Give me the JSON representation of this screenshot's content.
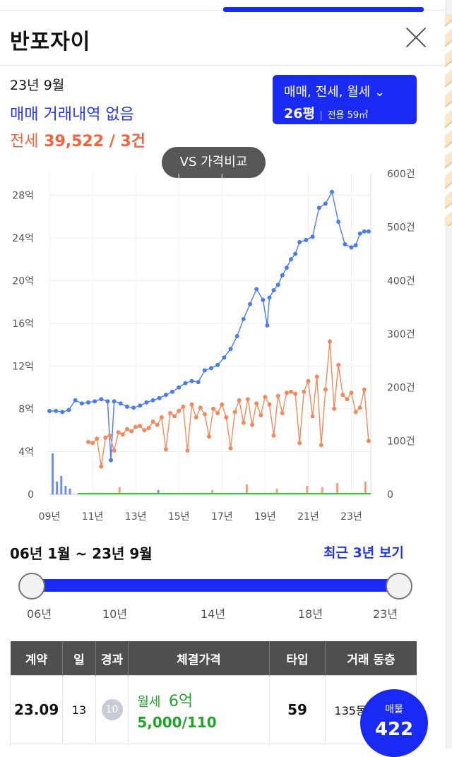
{
  "header": {
    "title": "반포자이"
  },
  "summary": {
    "date": "23년 9월",
    "sale_none": "매매 거래내역 없음",
    "jeonse_label": "전세",
    "jeonse_value": "39,522 / 3건"
  },
  "filter": {
    "types": "매매, 전세, 월세",
    "pyeong": "26평",
    "area": "전용 59㎡"
  },
  "compare_button": "VS 가격비교",
  "chart_data": {
    "type": "line",
    "left_axis_ticks": [
      "0",
      "4억",
      "8억",
      "12억",
      "16억",
      "20억",
      "24억",
      "28억"
    ],
    "right_axis_ticks": [
      "0",
      "100건",
      "200건",
      "300건",
      "400건",
      "500건",
      "600건"
    ],
    "x_ticks": [
      "09년",
      "11년",
      "13년",
      "15년",
      "17년",
      "19년",
      "21년",
      "23년"
    ],
    "ylim_left": [
      0,
      30
    ],
    "ylim_right": [
      0,
      600
    ],
    "xlim": [
      2009.0,
      2023.9
    ],
    "grid": true,
    "series": [
      {
        "color": "#4a7bf0",
        "x": [
          2009.0,
          2009.3,
          2009.6,
          2009.9,
          2010.2,
          2010.5,
          2010.8,
          2011.1,
          2011.4,
          2011.7,
          2011.85,
          2012.0,
          2012.3,
          2012.6,
          2012.9,
          2013.2,
          2013.5,
          2013.8,
          2014.1,
          2014.4,
          2014.7,
          2015.0,
          2015.3,
          2015.6,
          2015.9,
          2016.2,
          2016.5,
          2016.8,
          2017.1,
          2017.4,
          2017.7,
          2018.0,
          2018.3,
          2018.6,
          2018.9,
          2019.1,
          2019.2,
          2019.4,
          2019.6,
          2019.8,
          2020.0,
          2020.2,
          2020.4,
          2020.6,
          2020.9,
          2021.2,
          2021.5,
          2021.8,
          2022.1,
          2022.4,
          2022.7,
          2023.0,
          2023.2,
          2023.4,
          2023.6,
          2023.8
        ],
        "y": [
          7.8,
          7.8,
          7.7,
          7.9,
          8.8,
          8.5,
          8.6,
          8.7,
          8.9,
          8.7,
          3.2,
          8.7,
          8.5,
          8.2,
          8.1,
          8.3,
          8.6,
          8.8,
          9.0,
          9.3,
          9.6,
          10.0,
          10.4,
          10.6,
          10.5,
          11.6,
          11.8,
          12.1,
          12.8,
          13.6,
          14.8,
          16.4,
          17.8,
          19.2,
          18.2,
          15.8,
          18.4,
          19.1,
          19.6,
          20.5,
          21.2,
          22.0,
          22.5,
          23.6,
          23.8,
          24.1,
          26.8,
          27.2,
          28.3,
          25.5,
          23.4,
          23.1,
          23.3,
          24.4,
          24.6,
          24.6
        ]
      },
      {
        "color": "#f2895c",
        "x": [
          2010.8,
          2011.0,
          2011.2,
          2011.4,
          2011.6,
          2011.8,
          2012.0,
          2012.2,
          2012.4,
          2012.6,
          2012.8,
          2013.0,
          2013.2,
          2013.4,
          2013.6,
          2013.8,
          2014.0,
          2014.2,
          2014.4,
          2014.6,
          2014.8,
          2015.0,
          2015.2,
          2015.4,
          2015.6,
          2015.8,
          2016.0,
          2016.2,
          2016.4,
          2016.6,
          2016.8,
          2017.0,
          2017.2,
          2017.4,
          2017.6,
          2017.8,
          2018.0,
          2018.2,
          2018.4,
          2018.6,
          2018.8,
          2019.0,
          2019.2,
          2019.4,
          2019.6,
          2019.8,
          2020.0,
          2020.2,
          2020.4,
          2020.6,
          2020.8,
          2021.0,
          2021.2,
          2021.4,
          2021.6,
          2021.8,
          2022.0,
          2022.2,
          2022.4,
          2022.6,
          2022.8,
          2023.0,
          2023.2,
          2023.4,
          2023.6,
          2023.8
        ],
        "y": [
          4.9,
          4.8,
          5.2,
          2.6,
          5.3,
          5.5,
          4.1,
          5.8,
          5.6,
          6.1,
          5.9,
          6.3,
          6.4,
          6.0,
          6.2,
          6.8,
          6.5,
          7.2,
          4.2,
          7.6,
          7.3,
          7.8,
          8.2,
          4.1,
          8.4,
          7.2,
          8.1,
          7.5,
          5.4,
          8.0,
          7.6,
          8.4,
          7.2,
          4.3,
          7.7,
          8.8,
          6.7,
          8.9,
          6.5,
          8.5,
          7.4,
          9.1,
          8.4,
          5.5,
          9.2,
          7.6,
          9.5,
          9.6,
          9.4,
          4.8,
          9.6,
          10.6,
          7.3,
          11.0,
          4.6,
          9.8,
          14.3,
          8.0,
          12.1,
          9.3,
          8.9,
          9.5,
          7.7,
          8.1,
          9.8,
          5.0
        ]
      }
    ]
  },
  "range": {
    "title": "06년 1월 ~ 23년 9월",
    "recent_link": "최근 3년 보기",
    "labels": [
      "06년",
      "10년",
      "14년",
      "18년",
      "23년"
    ]
  },
  "table": {
    "headers": [
      "계약",
      "일",
      "경과",
      "체결가격",
      "타입",
      "거래 동층"
    ],
    "rows": [
      {
        "contract": "23.09",
        "day": "13",
        "elapsed": "10",
        "price_type": "월세",
        "price_main": "6억",
        "price_sub": "5,000/110",
        "type": "59",
        "dong": "135동"
      }
    ]
  },
  "fab": {
    "label": "매물",
    "count": "422"
  }
}
